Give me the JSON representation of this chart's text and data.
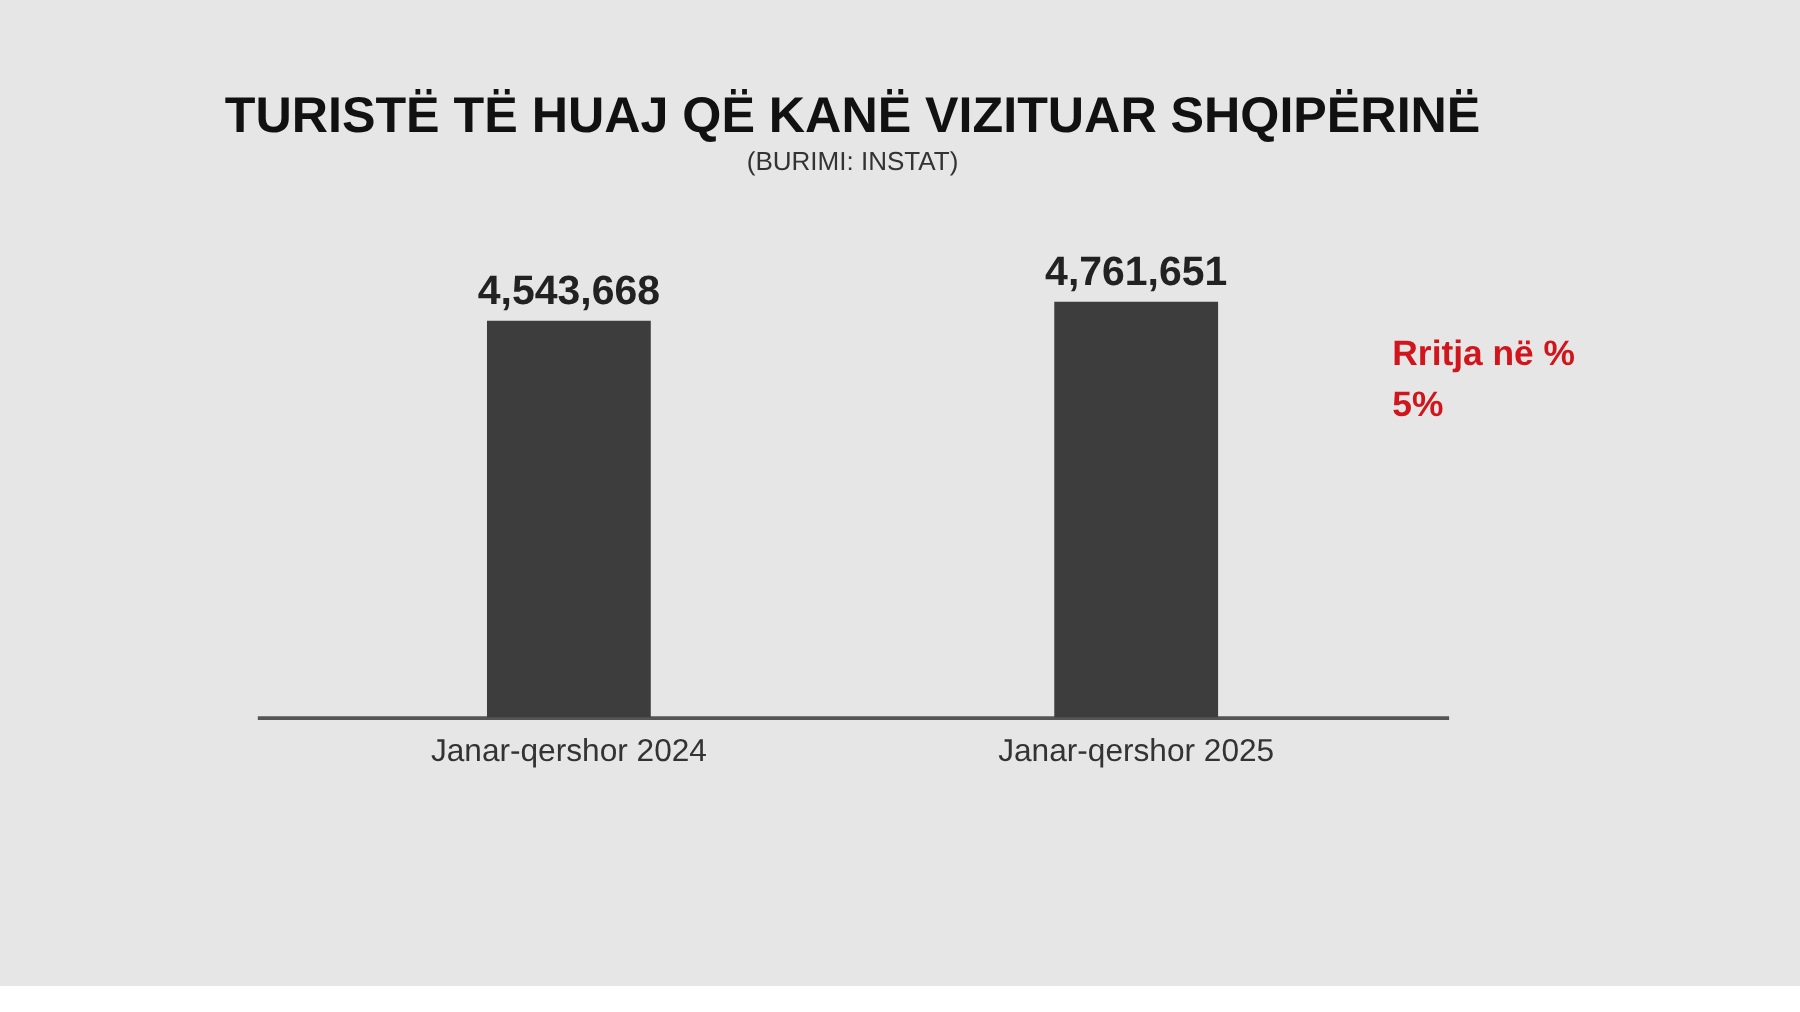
{
  "chart_data": {
    "type": "bar",
    "title": "TURISTË TË HUAJ QË KANË VIZITUAR SHQIPËRINË",
    "subtitle": "(BURIMI: INSTAT)",
    "categories": [
      "Janar-qershor 2024",
      "Janar-qershor 2025"
    ],
    "values": [
      4543668,
      4761651
    ],
    "color": "#3d3d3d",
    "value_labels": [
      "4,543,668",
      "4,761,651"
    ],
    "annotations": [
      "Rritja në %",
      "5%"
    ]
  }
}
